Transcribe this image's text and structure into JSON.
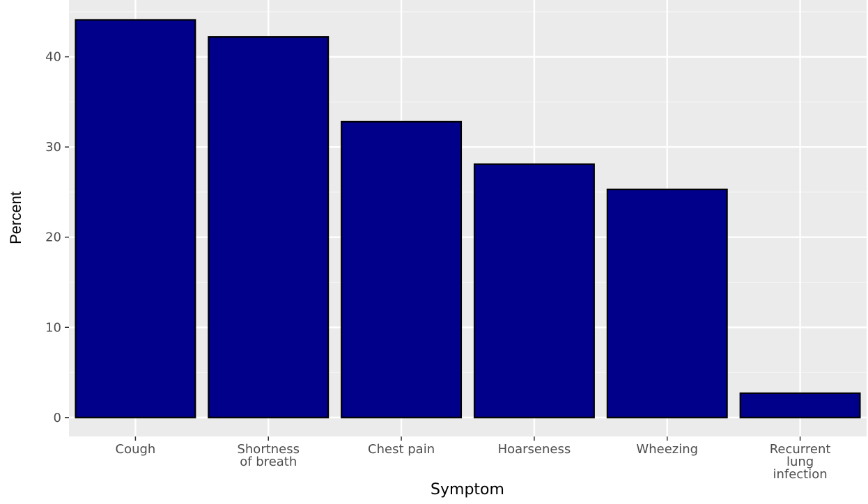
{
  "chart_data": {
    "type": "bar",
    "categories": [
      [
        "Cough"
      ],
      [
        "Shortness",
        "of breath"
      ],
      [
        "Chest pain"
      ],
      [
        "Hoarseness"
      ],
      [
        "Wheezing"
      ],
      [
        "Recurrent",
        "lung",
        "infection"
      ]
    ],
    "values": [
      44.1,
      42.2,
      32.8,
      28.1,
      25.3,
      2.7
    ],
    "xlabel": "Symptom",
    "ylabel": "Percent",
    "ylim": [
      -2.1,
      46.3
    ],
    "yticks": [
      0,
      10,
      20,
      30,
      40
    ],
    "grid": true,
    "legend": "none"
  },
  "colors": {
    "panel_background": "#ebebeb",
    "grid_major": "#ffffff",
    "grid_minor": "#f5f5f5",
    "bar_fill": "#00008b",
    "bar_outline": "#000000",
    "tick_text": "#4d4d4d",
    "tick_mark": "#333333"
  }
}
